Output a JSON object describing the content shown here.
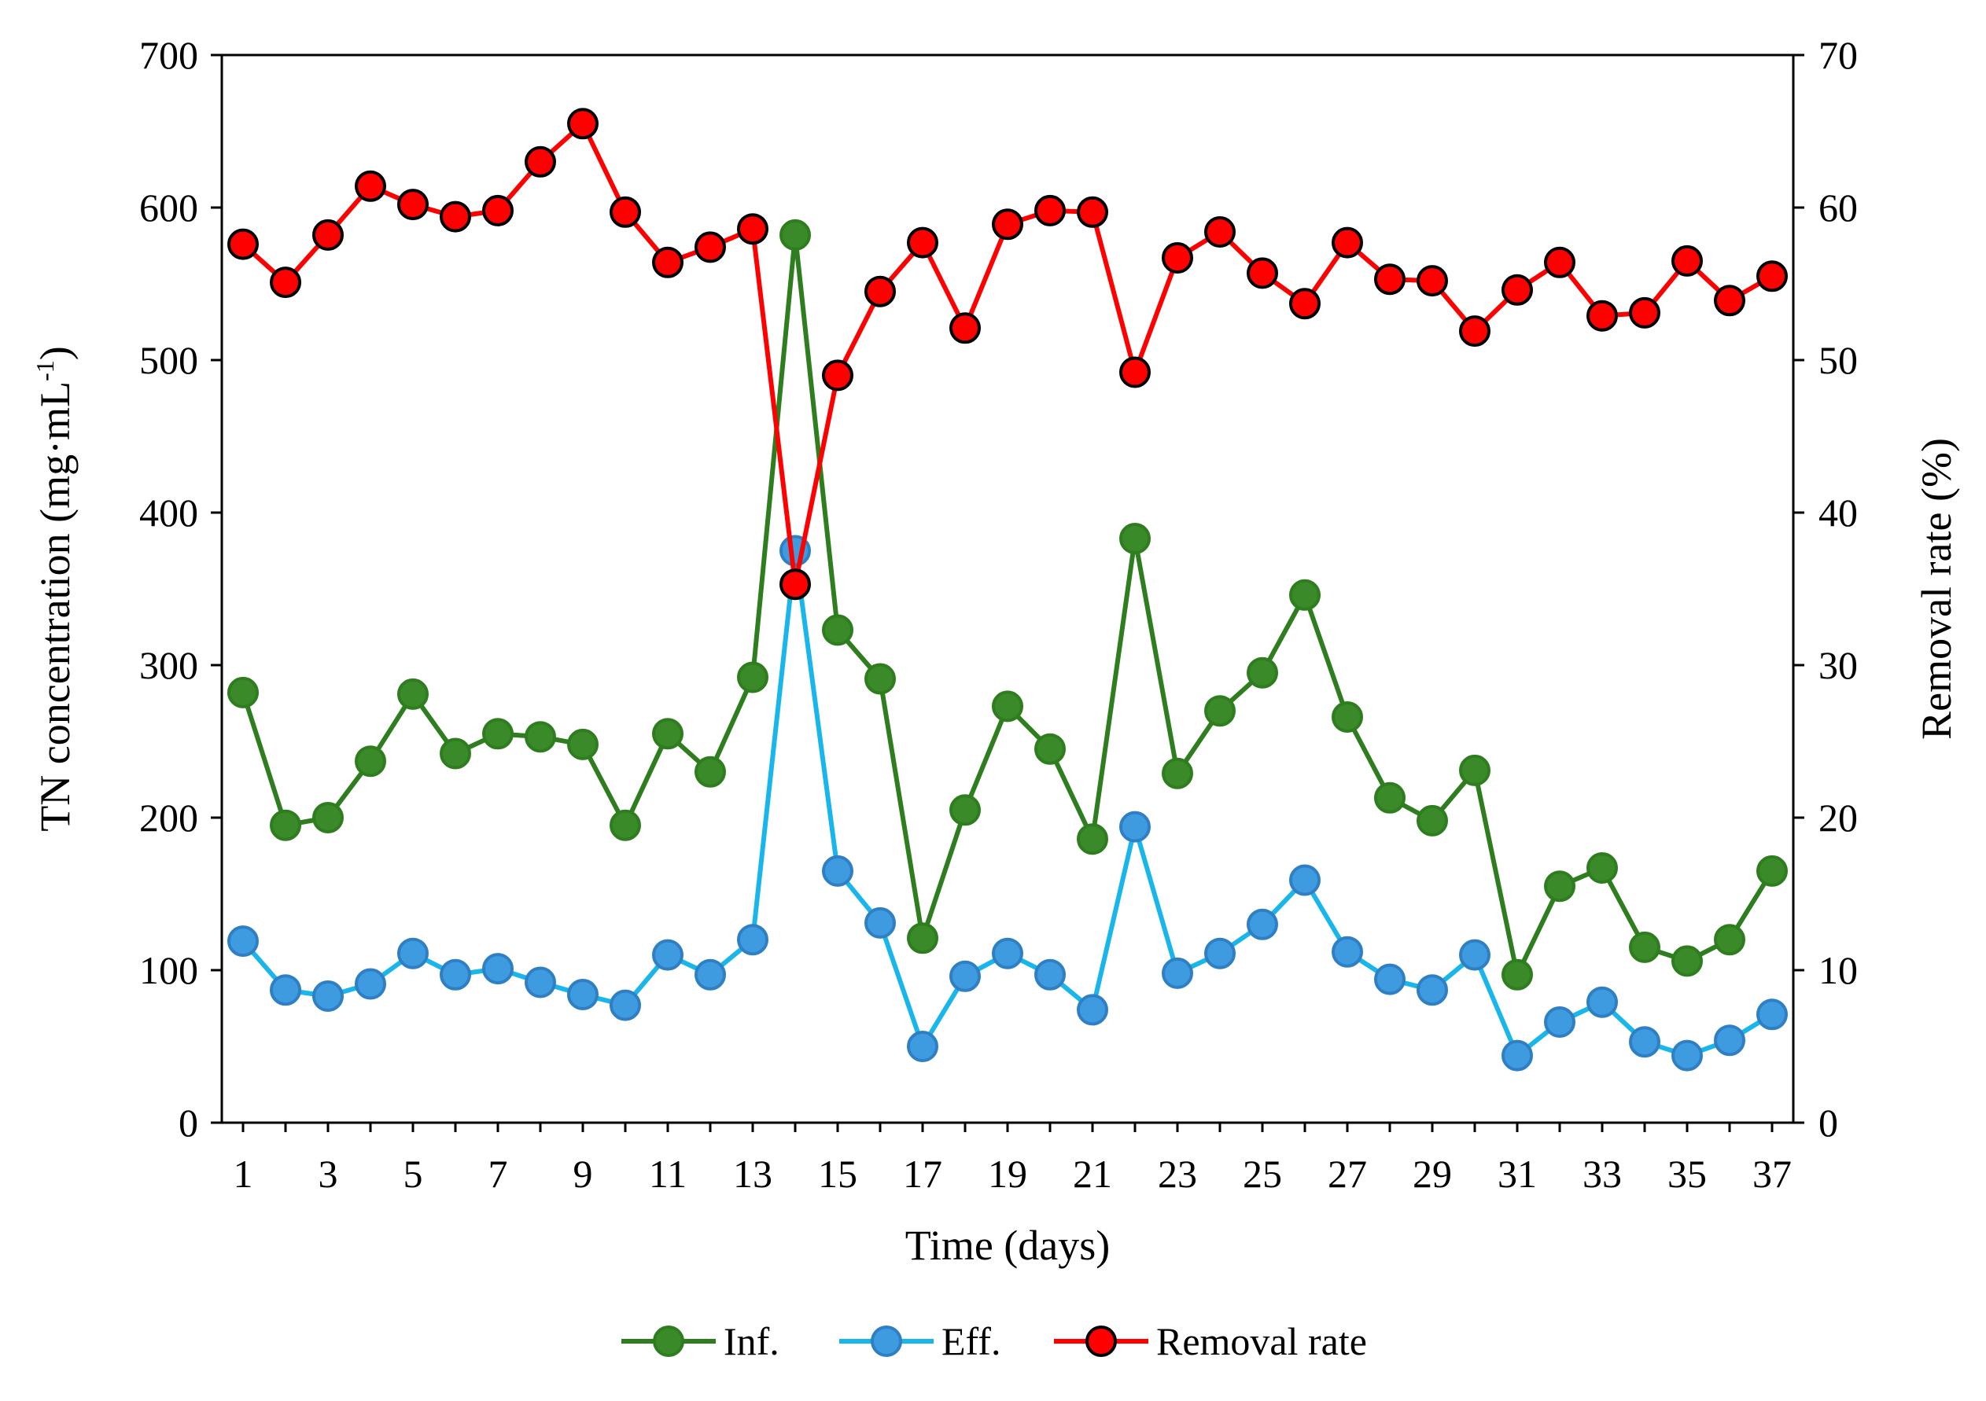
{
  "chart_data": {
    "type": "line",
    "xlabel": "Time (days)",
    "ylabel_left": "TN concentration  (mg·mL",
    "ylabel_left_sup": "-1",
    "ylabel_left_close": ")",
    "ylabel_right": "Removal rate (%)",
    "x": [
      1,
      2,
      3,
      4,
      5,
      6,
      7,
      8,
      9,
      10,
      11,
      12,
      13,
      14,
      15,
      16,
      17,
      18,
      19,
      20,
      21,
      22,
      23,
      24,
      25,
      26,
      27,
      28,
      29,
      30,
      31,
      32,
      33,
      34,
      35,
      36,
      37
    ],
    "x_tick_labels": [
      "1",
      "3",
      "5",
      "7",
      "9",
      "11",
      "13",
      "15",
      "17",
      "19",
      "21",
      "23",
      "25",
      "27",
      "29",
      "31",
      "33",
      "35",
      "37"
    ],
    "x_tick_values": [
      1,
      3,
      5,
      7,
      9,
      11,
      13,
      15,
      17,
      19,
      21,
      23,
      25,
      27,
      29,
      31,
      33,
      35,
      37
    ],
    "xlim": [
      0.5,
      37.5
    ],
    "ylim_left": [
      0,
      700
    ],
    "ylim_right": [
      0,
      70
    ],
    "y_left_ticks": [
      "0",
      "100",
      "200",
      "300",
      "400",
      "500",
      "600",
      "700"
    ],
    "y_left_tick_values": [
      0,
      100,
      200,
      300,
      400,
      500,
      600,
      700
    ],
    "y_right_ticks": [
      "0",
      "10",
      "20",
      "30",
      "40",
      "50",
      "60",
      "70"
    ],
    "y_right_tick_values": [
      0,
      10,
      20,
      30,
      40,
      50,
      60,
      70
    ],
    "series": [
      {
        "name": "Inf.",
        "axis": "left",
        "line_color": "#2e7d1f",
        "marker_fill": "#3a8a2a",
        "marker_edge": "#2e7d1f",
        "values": [
          282,
          195,
          200,
          237,
          281,
          242,
          255,
          253,
          248,
          195,
          255,
          230,
          292,
          582,
          323,
          291,
          121,
          205,
          273,
          245,
          186,
          383,
          229,
          270,
          295,
          346,
          266,
          213,
          198,
          231,
          97,
          155,
          167,
          115,
          106,
          120,
          165
        ]
      },
      {
        "name": "Eff.",
        "axis": "left",
        "line_color": "#19b6ec",
        "marker_fill": "#3f9be0",
        "marker_edge": "#2f7fc4",
        "values": [
          119,
          87,
          83,
          91,
          111,
          97,
          101,
          92,
          84,
          77,
          110,
          97,
          120,
          375,
          165,
          131,
          50,
          96,
          111,
          97,
          74,
          194,
          98,
          111,
          130,
          159,
          112,
          94,
          87,
          110,
          44,
          66,
          79,
          53,
          44,
          54,
          71
        ]
      },
      {
        "name": "Removal rate",
        "axis": "right",
        "line_color": "#ff0000",
        "marker_fill": "#ff0000",
        "marker_edge": "#000000",
        "values": [
          57.6,
          55.1,
          58.2,
          61.4,
          60.2,
          59.4,
          59.8,
          63.0,
          65.5,
          59.7,
          56.4,
          57.4,
          58.6,
          35.3,
          49.0,
          54.5,
          57.7,
          52.1,
          58.9,
          59.8,
          59.7,
          49.2,
          56.7,
          58.4,
          55.7,
          53.7,
          57.7,
          55.3,
          55.2,
          51.9,
          54.6,
          56.4,
          52.9,
          53.1,
          56.5,
          53.9,
          55.5
        ]
      }
    ],
    "legend_position": "bottom-center",
    "grid": false
  }
}
